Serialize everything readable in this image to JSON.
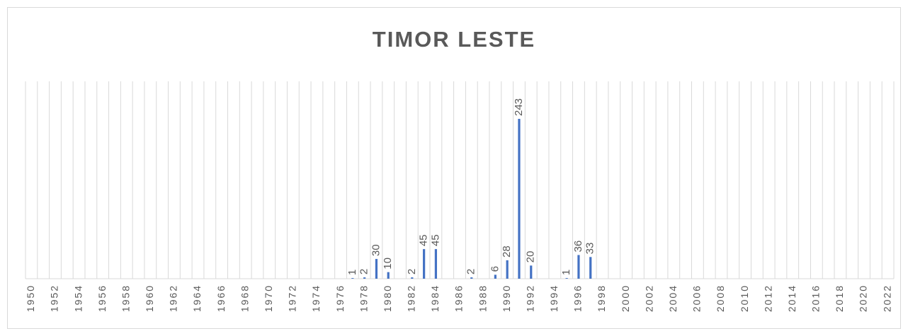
{
  "chart_data": {
    "type": "bar",
    "title": "TIMOR LESTE",
    "categories": [
      "1950",
      null,
      "1952",
      null,
      "1954",
      null,
      "1956",
      null,
      "1958",
      null,
      "1960",
      null,
      "1962",
      null,
      "1964",
      null,
      "1966",
      null,
      "1968",
      null,
      "1970",
      null,
      "1972",
      null,
      "1974",
      null,
      "1976",
      null,
      "1978",
      null,
      "1980",
      null,
      "1982",
      null,
      "1984",
      null,
      "1986",
      null,
      "1988",
      null,
      "1990",
      null,
      "1992",
      null,
      "1994",
      null,
      "1996",
      null,
      "1998",
      null,
      "2000",
      null,
      "2002",
      null,
      "2004",
      null,
      "2006",
      null,
      "2008",
      null,
      "2010",
      null,
      "2012",
      null,
      "2014",
      null,
      "2016",
      null,
      "2018",
      null,
      "2020",
      null,
      "2022"
    ],
    "values": [
      null,
      null,
      null,
      null,
      null,
      null,
      null,
      null,
      null,
      null,
      null,
      null,
      null,
      null,
      null,
      null,
      null,
      null,
      null,
      null,
      null,
      null,
      null,
      null,
      null,
      null,
      null,
      1,
      2,
      30,
      10,
      null,
      2,
      45,
      45,
      null,
      null,
      2,
      null,
      6,
      28,
      243,
      20,
      null,
      null,
      1,
      36,
      33,
      null,
      null,
      null,
      null,
      null,
      null,
      null,
      null,
      null,
      null,
      null,
      null,
      null,
      null,
      null,
      null,
      null,
      null,
      null,
      null,
      null,
      null,
      null,
      null,
      null
    ],
    "color": "#4472c4",
    "ylim": [
      0,
      300
    ],
    "data_labels": true
  }
}
